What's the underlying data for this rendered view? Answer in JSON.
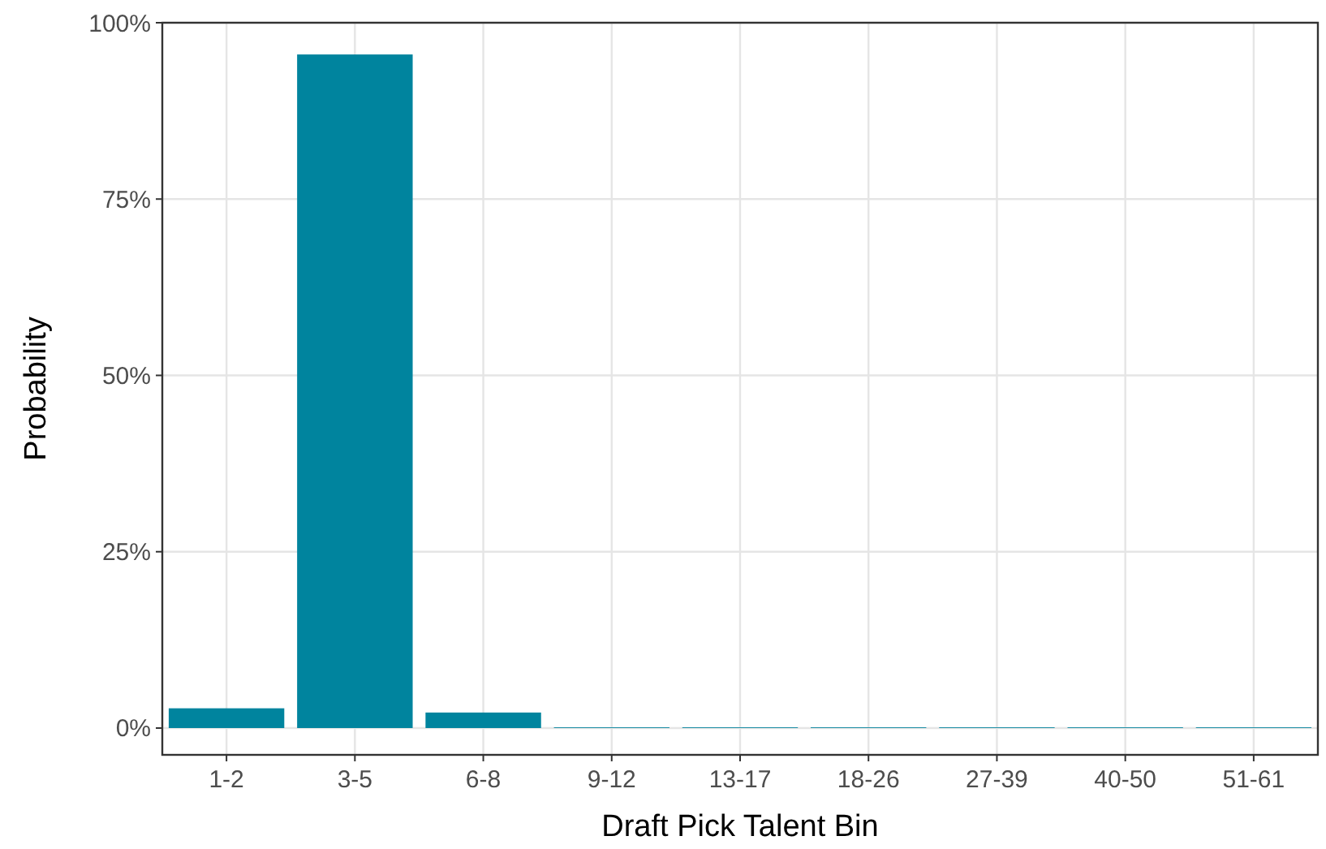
{
  "chart_data": {
    "type": "bar",
    "xlabel": "Draft Pick Talent Bin",
    "ylabel": "Probability",
    "categories": [
      "1-2",
      "3-5",
      "6-8",
      "9-12",
      "13-17",
      "18-26",
      "27-39",
      "40-50",
      "51-61"
    ],
    "values": [
      2.8,
      95.5,
      2.2,
      0.1,
      0.1,
      0.1,
      0.1,
      0.1,
      0.1
    ],
    "color": "#00849e",
    "ylim": [
      -3.8,
      100
    ],
    "yticks": [
      {
        "value": 0,
        "label": "0%"
      },
      {
        "value": 25,
        "label": "25%"
      },
      {
        "value": 50,
        "label": "50%"
      },
      {
        "value": 75,
        "label": "75%"
      },
      {
        "value": 100,
        "label": "100%"
      }
    ],
    "grid": true
  }
}
